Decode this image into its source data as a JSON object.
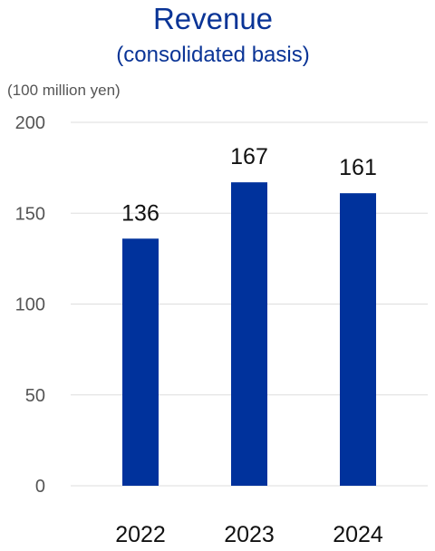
{
  "chart_data": {
    "type": "bar",
    "title": "Revenue",
    "subtitle": "(consolidated basis)",
    "unit_label": "(100 million yen)",
    "categories": [
      "2022",
      "2023",
      "2024"
    ],
    "series": [
      {
        "values": [
          136,
          167,
          161
        ],
        "color": "#00329c"
      }
    ],
    "data_labels": [
      "136",
      "167",
      "161"
    ],
    "yticks": [
      0,
      50,
      100,
      150,
      200
    ],
    "ylim": [
      0,
      200
    ],
    "grid": true,
    "legend": "none"
  }
}
